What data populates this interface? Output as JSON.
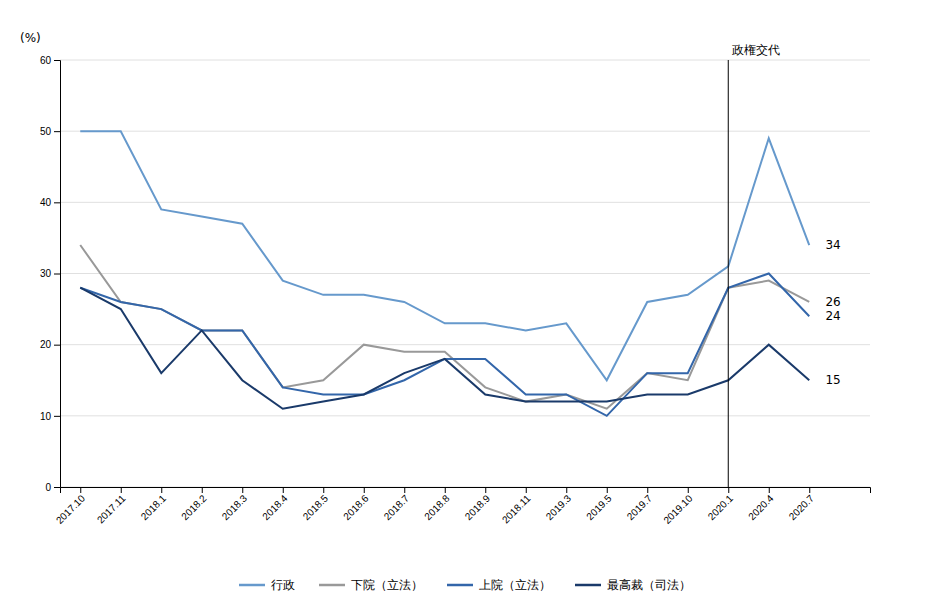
{
  "chart_data": {
    "type": "line",
    "y_label": "(%)",
    "categories": [
      "2017.10",
      "2017.11",
      "2018.1",
      "2018.2",
      "2018.3",
      "2018.4",
      "2018.5",
      "2018.6",
      "2018.7",
      "2018.8",
      "2018.9",
      "2018.11",
      "2019.3",
      "2019.5",
      "2019.7",
      "2019.10",
      "2020.1",
      "2020.4",
      "2020.7"
    ],
    "series": [
      {
        "name": "行政",
        "color": "#6699CC",
        "values": [
          50,
          50,
          39,
          38,
          37,
          29,
          27,
          27,
          26,
          23,
          23,
          22,
          23,
          15,
          26,
          27,
          31,
          49,
          34
        ],
        "end_label": 34
      },
      {
        "name": "下院（立法）",
        "color": "#999999",
        "values": [
          34,
          26,
          25,
          22,
          22,
          14,
          15,
          20,
          19,
          19,
          14,
          12,
          13,
          11,
          16,
          15,
          28,
          29,
          26
        ],
        "end_label": 26
      },
      {
        "name": "上院（立法）",
        "color": "#3366AA",
        "values": [
          28,
          26,
          25,
          22,
          22,
          14,
          13,
          13,
          15,
          18,
          18,
          13,
          13,
          10,
          16,
          16,
          28,
          30,
          24
        ],
        "end_label": 24
      },
      {
        "name": "最高裁（司法）",
        "color": "#1A3A6A",
        "values": [
          28,
          25,
          16,
          22,
          15,
          11,
          12,
          13,
          16,
          18,
          13,
          12,
          12,
          12,
          13,
          13,
          15,
          20,
          15
        ],
        "end_label": 15
      }
    ],
    "annotations": [
      {
        "text": "政権交代",
        "x": "2020.1"
      }
    ],
    "ylim": [
      0,
      60
    ],
    "yticks": [
      0,
      10,
      20,
      30,
      40,
      50,
      60
    ],
    "grid": true,
    "legend": "bottom"
  }
}
